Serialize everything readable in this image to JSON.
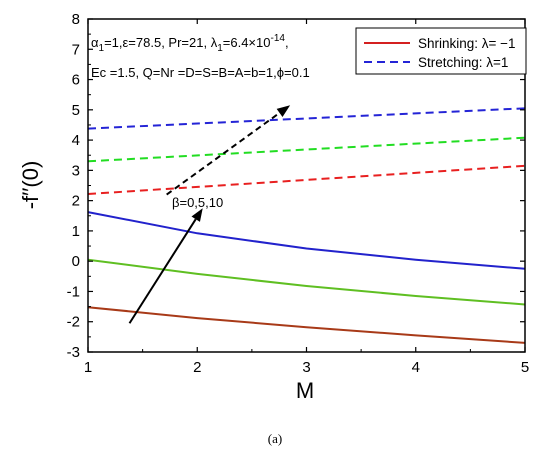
{
  "chart_data": {
    "type": "line",
    "xlabel": "M",
    "ylabel": "-f′′(0)",
    "xlim": [
      1,
      5
    ],
    "ylim": [
      -3,
      8
    ],
    "xticks": [
      "1",
      "2",
      "3",
      "4",
      "5"
    ],
    "yticks": [
      "-3",
      "-2",
      "-1",
      "0",
      "1",
      "2",
      "3",
      "4",
      "5",
      "6",
      "7",
      "8"
    ],
    "annotation_line1_parts": [
      "α",
      "1",
      "=1,ε=78.5, Pr=21, λ",
      "1",
      "=6.4×10",
      "-14",
      ","
    ],
    "annotation_line2": "Ec =1.5, Q=Nr =D=S=B=A=b=1,ϕ=0.1",
    "beta_label": "β=0,5,10",
    "caption": "(a)",
    "legend_position": "top-right",
    "legend": [
      {
        "label": "Shrinking: λ= −1",
        "style": "solid",
        "color": "#d42020"
      },
      {
        "label": "Stretching: λ=1",
        "style": "dashed",
        "color": "#2424d6"
      }
    ],
    "series": [
      {
        "style": "dashed",
        "color": "#2424d6",
        "x": [
          1,
          5
        ],
        "y": [
          4.38,
          5.05
        ]
      },
      {
        "style": "dashed",
        "color": "#22dd22",
        "x": [
          1,
          5
        ],
        "y": [
          3.3,
          4.08
        ]
      },
      {
        "style": "dashed",
        "color": "#e82020",
        "x": [
          1,
          5
        ],
        "y": [
          2.22,
          3.15
        ]
      },
      {
        "style": "solid",
        "color": "#2222cc",
        "x": [
          1,
          2,
          3,
          4,
          5
        ],
        "y": [
          1.62,
          0.92,
          0.42,
          0.05,
          -0.25
        ]
      },
      {
        "style": "solid",
        "color": "#5fbf22",
        "x": [
          1,
          2,
          3,
          4,
          5
        ],
        "y": [
          0.05,
          -0.42,
          -0.82,
          -1.15,
          -1.43
        ]
      },
      {
        "style": "solid",
        "color": "#a83a18",
        "x": [
          1,
          2,
          3,
          4,
          5
        ],
        "y": [
          -1.52,
          -1.88,
          -2.18,
          -2.45,
          -2.7
        ]
      }
    ],
    "arrows": [
      {
        "style": "solid",
        "from": [
          1.38,
          -2.05
        ],
        "to": [
          2.05,
          1.75
        ]
      },
      {
        "style": "dashed",
        "from": [
          1.72,
          2.2
        ],
        "to": [
          2.85,
          5.15
        ]
      }
    ]
  }
}
